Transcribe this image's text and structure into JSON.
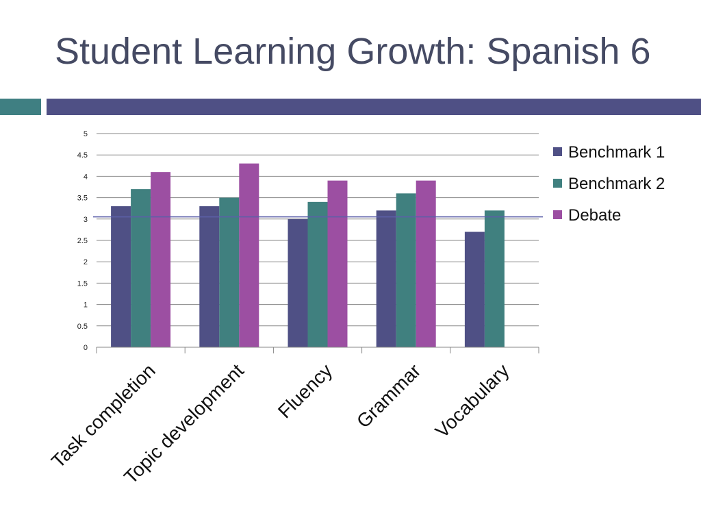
{
  "title": "Student Learning Growth: Spanish 6",
  "colors": {
    "title": "#454a63",
    "accent_teal": "#3f7f82",
    "accent_navy": "#4f5085",
    "grid": "#878787",
    "reference_line": "#5b5fa8"
  },
  "chart_data": {
    "type": "bar",
    "categories": [
      "Task completion",
      "Topic development",
      "Fluency",
      "Grammar",
      "Vocabulary"
    ],
    "series": [
      {
        "name": "Benchmark 1",
        "color": "#4f5085",
        "values": [
          3.3,
          3.3,
          3.0,
          3.2,
          2.7
        ]
      },
      {
        "name": "Benchmark 2",
        "color": "#40807f",
        "values": [
          3.7,
          3.5,
          3.4,
          3.6,
          3.2
        ]
      },
      {
        "name": "Debate",
        "color": "#9c4fa2",
        "values": [
          4.1,
          4.3,
          3.9,
          3.9,
          null
        ]
      }
    ],
    "ylim": [
      0,
      5
    ],
    "yticks": [
      "0",
      "0.5",
      "1",
      "1.5",
      "2",
      "2.5",
      "3",
      "3.5",
      "4",
      "4.5",
      "5"
    ],
    "reference_line_y": 3.05,
    "grid": true,
    "legend_position": "right"
  }
}
